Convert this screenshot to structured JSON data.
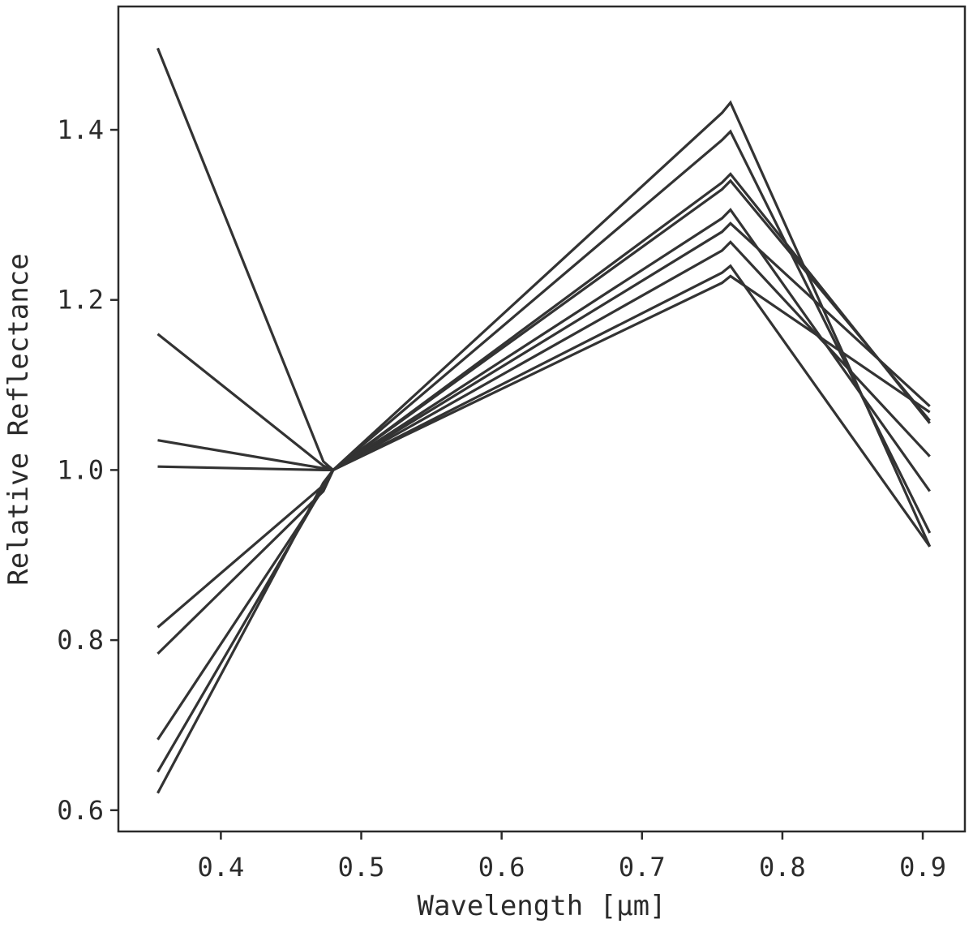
{
  "chart_data": {
    "type": "line",
    "xlabel": "Wavelength [μm]",
    "ylabel": "Relative Reflectance",
    "xlim": [
      0.327,
      0.93
    ],
    "ylim": [
      0.575,
      1.545
    ],
    "xticks": [
      0.4,
      0.5,
      0.6,
      0.7,
      0.8,
      0.9
    ],
    "yticks": [
      0.6,
      0.8,
      1.0,
      1.2,
      1.4
    ],
    "xtick_labels": [
      "0.4",
      "0.5",
      "0.6",
      "0.7",
      "0.8",
      "0.9"
    ],
    "ytick_labels": [
      "0.6",
      "0.8",
      "1.0",
      "1.2",
      "1.4"
    ],
    "grid": false,
    "line_color": "#333333",
    "x": [
      0.355,
      0.473,
      0.48,
      0.757,
      0.763,
      0.905
    ],
    "series": [
      {
        "values": [
          1.496,
          1.01,
          1.0,
          1.22,
          1.228,
          1.068
        ]
      },
      {
        "values": [
          1.16,
          1.005,
          1.0,
          1.28,
          1.29,
          1.075
        ]
      },
      {
        "values": [
          1.035,
          1.002,
          1.0,
          1.33,
          1.34,
          1.058
        ]
      },
      {
        "values": [
          1.004,
          1.0,
          1.0,
          1.338,
          1.348,
          1.055
        ]
      },
      {
        "values": [
          0.815,
          0.982,
          1.0,
          1.42,
          1.432,
          0.91
        ]
      },
      {
        "values": [
          0.784,
          0.975,
          1.0,
          1.388,
          1.398,
          0.926
        ]
      },
      {
        "values": [
          0.683,
          0.978,
          1.0,
          1.258,
          1.268,
          1.016
        ]
      },
      {
        "values": [
          0.645,
          0.98,
          1.0,
          1.296,
          1.306,
          0.975
        ]
      },
      {
        "values": [
          0.62,
          0.985,
          1.0,
          1.232,
          1.24,
          0.91
        ]
      }
    ]
  }
}
